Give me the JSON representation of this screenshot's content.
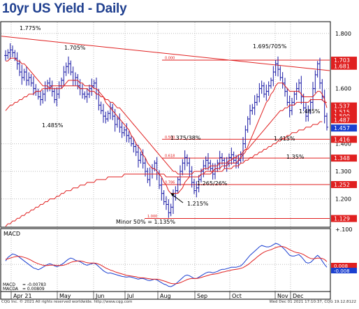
{
  "title": "10yr US Yield - Daily",
  "footer_left": "CQG Inc. © 2021 All rights reserved worldwide. http://www.cqg.com",
  "footer_right": "Wed Dec 01 2021 17:10:37, CQG 19.12.8122",
  "chart_data": [
    {
      "type": "candlestick",
      "title": "10yr US Yield - Daily",
      "x_labels": [
        "Apr 21",
        "May",
        "Jun",
        "Jul",
        "Aug",
        "Sep",
        "Oct",
        "Nov",
        "Dec"
      ],
      "y_ticks": [
        "1.800",
        "1.600",
        "1.400",
        "1.300",
        "1.200"
      ],
      "ylim": [
        1.1,
        1.84
      ],
      "grid": true,
      "price_tags": [
        {
          "label": "1.703",
          "value": 1.703,
          "color": "#e02020"
        },
        {
          "label": "1.681",
          "value": 1.681,
          "color": "#e02020"
        },
        {
          "label": "1.537",
          "value": 1.537,
          "color": "#e02020"
        },
        {
          "label": "1.515",
          "value": 1.515,
          "color": "#e02020"
        },
        {
          "label": "1.500",
          "value": 1.5,
          "color": "#e02020"
        },
        {
          "label": "1.487",
          "value": 1.487,
          "color": "#e02020"
        },
        {
          "label": "1.457",
          "value": 1.457,
          "color": "#1a3fd0"
        },
        {
          "label": "1.416",
          "value": 1.416,
          "color": "#e02020"
        },
        {
          "label": "1.348",
          "value": 1.348,
          "color": "#e02020"
        },
        {
          "label": "1.252",
          "value": 1.252,
          "color": "#e02020"
        },
        {
          "label": "1.129",
          "value": 1.129,
          "color": "#e02020"
        }
      ],
      "horizontal_levels": [
        {
          "value": 1.703,
          "label": "0.000"
        },
        {
          "value": 1.416,
          "label": "0.500"
        },
        {
          "value": 1.348,
          "label": "0.618"
        },
        {
          "value": 1.252,
          "label": "0.786"
        },
        {
          "value": 1.129,
          "label": "1.000"
        }
      ],
      "annotations": [
        "1.775%",
        "1.705%",
        "1.485%",
        "1.695/705%",
        "1.485%",
        "1.375/38%",
        "1.415%",
        "1.35%",
        "1.265/26%",
        "1.215%",
        "Minor 50% = 1.135%"
      ],
      "closes": [
        1.72,
        1.73,
        1.74,
        1.73,
        1.71,
        1.69,
        1.66,
        1.64,
        1.66,
        1.63,
        1.64,
        1.62,
        1.6,
        1.59,
        1.57,
        1.56,
        1.58,
        1.6,
        1.62,
        1.61,
        1.59,
        1.56,
        1.58,
        1.61,
        1.63,
        1.66,
        1.68,
        1.69,
        1.66,
        1.63,
        1.64,
        1.61,
        1.6,
        1.58,
        1.57,
        1.58,
        1.6,
        1.61,
        1.62,
        1.58,
        1.54,
        1.52,
        1.5,
        1.49,
        1.51,
        1.53,
        1.5,
        1.47,
        1.49,
        1.46,
        1.44,
        1.45,
        1.43,
        1.42,
        1.4,
        1.39,
        1.37,
        1.34,
        1.36,
        1.33,
        1.3,
        1.27,
        1.29,
        1.31,
        1.33,
        1.29,
        1.25,
        1.22,
        1.19,
        1.18,
        1.15,
        1.17,
        1.21,
        1.23,
        1.27,
        1.3,
        1.33,
        1.35,
        1.33,
        1.3,
        1.26,
        1.23,
        1.24,
        1.27,
        1.3,
        1.32,
        1.34,
        1.33,
        1.31,
        1.29,
        1.31,
        1.33,
        1.35,
        1.34,
        1.32,
        1.33,
        1.35,
        1.36,
        1.34,
        1.33,
        1.34,
        1.36,
        1.4,
        1.45,
        1.49,
        1.52,
        1.53,
        1.55,
        1.57,
        1.6,
        1.61,
        1.58,
        1.59,
        1.61,
        1.63,
        1.66,
        1.69,
        1.67,
        1.64,
        1.62,
        1.59,
        1.55,
        1.52,
        1.55,
        1.58,
        1.6,
        1.62,
        1.57,
        1.53,
        1.5,
        1.52,
        1.55,
        1.6,
        1.65,
        1.69,
        1.62,
        1.57,
        1.5,
        1.46
      ],
      "sma_short": [
        1.7,
        1.7,
        1.71,
        1.71,
        1.71,
        1.7,
        1.7,
        1.69,
        1.69,
        1.68,
        1.67,
        1.66,
        1.65,
        1.64,
        1.63,
        1.62,
        1.61,
        1.61,
        1.61,
        1.6,
        1.6,
        1.6,
        1.6,
        1.6,
        1.6,
        1.61,
        1.62,
        1.63,
        1.63,
        1.63,
        1.63,
        1.63,
        1.62,
        1.62,
        1.61,
        1.61,
        1.61,
        1.61,
        1.6,
        1.6,
        1.59,
        1.58,
        1.57,
        1.55,
        1.54,
        1.53,
        1.52,
        1.51,
        1.5,
        1.49,
        1.48,
        1.47,
        1.46,
        1.45,
        1.43,
        1.42,
        1.4,
        1.39,
        1.38,
        1.36,
        1.35,
        1.33,
        1.32,
        1.31,
        1.31,
        1.3,
        1.29,
        1.28,
        1.26,
        1.25,
        1.23,
        1.22,
        1.22,
        1.22,
        1.22,
        1.23,
        1.24,
        1.26,
        1.27,
        1.28,
        1.28,
        1.28,
        1.28,
        1.28,
        1.29,
        1.29,
        1.3,
        1.3,
        1.3,
        1.3,
        1.31,
        1.31,
        1.31,
        1.32,
        1.32,
        1.32,
        1.33,
        1.33,
        1.33,
        1.33,
        1.34,
        1.35,
        1.36,
        1.37,
        1.39,
        1.41,
        1.43,
        1.45,
        1.47,
        1.49,
        1.51,
        1.53,
        1.55,
        1.56,
        1.58,
        1.59,
        1.61,
        1.62,
        1.62,
        1.62,
        1.61,
        1.6,
        1.59,
        1.59,
        1.59,
        1.59,
        1.59,
        1.58,
        1.57,
        1.57,
        1.57,
        1.57,
        1.57,
        1.58,
        1.59,
        1.59,
        1.58,
        1.56,
        1.53
      ],
      "sma_long": [
        1.52,
        1.53,
        1.54,
        1.54,
        1.55,
        1.55,
        1.56,
        1.56,
        1.57,
        1.57,
        1.58,
        1.58,
        1.58,
        1.59,
        1.59,
        1.59,
        1.6,
        1.6,
        1.6,
        1.6,
        1.61,
        1.61,
        1.61,
        1.61,
        1.61,
        1.61,
        1.61,
        1.61,
        1.61,
        1.61,
        1.61,
        1.61,
        1.6,
        1.6,
        1.6,
        1.6,
        1.59,
        1.59,
        1.59,
        1.58,
        1.58,
        1.57,
        1.57,
        1.56,
        1.56,
        1.55,
        1.55,
        1.54,
        1.53,
        1.53,
        1.52,
        1.51,
        1.5,
        1.49,
        1.48,
        1.47,
        1.46,
        1.45,
        1.44,
        1.43,
        1.42,
        1.41,
        1.4,
        1.39,
        1.38,
        1.37,
        1.36,
        1.35,
        1.34,
        1.33,
        1.32,
        1.31,
        1.3,
        1.3,
        1.29,
        1.29,
        1.29,
        1.29,
        1.29,
        1.29,
        1.29,
        1.3,
        1.3,
        1.3,
        1.3,
        1.31,
        1.31,
        1.31,
        1.32,
        1.32,
        1.32,
        1.32,
        1.33,
        1.33,
        1.33,
        1.33,
        1.34,
        1.34,
        1.35,
        1.35,
        1.36,
        1.36,
        1.37,
        1.38,
        1.38,
        1.39,
        1.4,
        1.41,
        1.42,
        1.43,
        1.44,
        1.45,
        1.46,
        1.47,
        1.48,
        1.49,
        1.5,
        1.51,
        1.52,
        1.52,
        1.53,
        1.53,
        1.54,
        1.54,
        1.54,
        1.55,
        1.55,
        1.55,
        1.55,
        1.55,
        1.55,
        1.56,
        1.56,
        1.56,
        1.56,
        1.56,
        1.56,
        1.55,
        1.55
      ],
      "sma_xlong": [
        1.1,
        1.11,
        1.11,
        1.12,
        1.12,
        1.13,
        1.13,
        1.14,
        1.14,
        1.15,
        1.15,
        1.16,
        1.16,
        1.17,
        1.17,
        1.18,
        1.18,
        1.19,
        1.19,
        1.2,
        1.2,
        1.2,
        1.21,
        1.21,
        1.22,
        1.22,
        1.23,
        1.23,
        1.23,
        1.24,
        1.24,
        1.24,
        1.25,
        1.25,
        1.25,
        1.26,
        1.26,
        1.26,
        1.26,
        1.27,
        1.27,
        1.27,
        1.27,
        1.27,
        1.28,
        1.28,
        1.28,
        1.28,
        1.28,
        1.28,
        1.28,
        1.29,
        1.29,
        1.29,
        1.29,
        1.29,
        1.29,
        1.29,
        1.29,
        1.29,
        1.29,
        1.29,
        1.29,
        1.29,
        1.29,
        1.29,
        1.29,
        1.29,
        1.29,
        1.28,
        1.28,
        1.28,
        1.28,
        1.28,
        1.28,
        1.28,
        1.28,
        1.28,
        1.28,
        1.28,
        1.28,
        1.28,
        1.28,
        1.28,
        1.29,
        1.29,
        1.29,
        1.29,
        1.29,
        1.3,
        1.3,
        1.3,
        1.3,
        1.3,
        1.31,
        1.31,
        1.31,
        1.31,
        1.32,
        1.32,
        1.32,
        1.33,
        1.33,
        1.34,
        1.34,
        1.35,
        1.35,
        1.36,
        1.36,
        1.37,
        1.37,
        1.38,
        1.38,
        1.39,
        1.39,
        1.4,
        1.4,
        1.41,
        1.41,
        1.42,
        1.42,
        1.43,
        1.43,
        1.44,
        1.44,
        1.44,
        1.45,
        1.45,
        1.45,
        1.46,
        1.46,
        1.46,
        1.47,
        1.47,
        1.47,
        1.48,
        1.48
      ],
      "trendline": {
        "from": {
          "x_index": 0,
          "value": 1.79
        },
        "to": {
          "x_index": 141,
          "value": 1.665
        }
      }
    },
    {
      "type": "line",
      "title": "MACD",
      "y_ticks": [
        "+.100"
      ],
      "ylim": [
        -0.075,
        0.1
      ],
      "legend": [
        {
          "label": "MACD",
          "value": "-0.00783",
          "color": "#1a3fd0"
        },
        {
          "label": "MACDA",
          "value": "0.00809",
          "color": "#e02020"
        }
      ],
      "price_tags": [
        {
          "label": "0.008",
          "value": 0.008,
          "color": "#e02020"
        },
        {
          "label": "-0.008",
          "value": -0.008,
          "color": "#1a3fd0"
        }
      ],
      "series": [
        {
          "name": "MACD",
          "values": [
            0.01,
            0.02,
            0.025,
            0.03,
            0.028,
            0.025,
            0.02,
            0.015,
            0.01,
            0.005,
            0.0,
            -0.005,
            -0.01,
            -0.012,
            -0.015,
            -0.012,
            -0.008,
            -0.004,
            0.0,
            0.002,
            0.0,
            -0.004,
            -0.006,
            -0.004,
            0.0,
            0.004,
            0.01,
            0.015,
            0.018,
            0.016,
            0.012,
            0.01,
            0.008,
            0.004,
            0.0,
            -0.002,
            0.0,
            0.002,
            0.004,
            0.0,
            -0.006,
            -0.012,
            -0.018,
            -0.022,
            -0.025,
            -0.024,
            -0.026,
            -0.028,
            -0.03,
            -0.032,
            -0.034,
            -0.035,
            -0.036,
            -0.035,
            -0.036,
            -0.038,
            -0.04,
            -0.042,
            -0.04,
            -0.04,
            -0.042,
            -0.045,
            -0.046,
            -0.044,
            -0.042,
            -0.044,
            -0.048,
            -0.052,
            -0.056,
            -0.058,
            -0.062,
            -0.063,
            -0.06,
            -0.056,
            -0.05,
            -0.044,
            -0.038,
            -0.032,
            -0.03,
            -0.032,
            -0.036,
            -0.04,
            -0.04,
            -0.036,
            -0.032,
            -0.028,
            -0.024,
            -0.022,
            -0.022,
            -0.024,
            -0.022,
            -0.02,
            -0.016,
            -0.014,
            -0.014,
            -0.012,
            -0.01,
            -0.008,
            -0.008,
            -0.008,
            -0.006,
            -0.004,
            0.002,
            0.01,
            0.018,
            0.026,
            0.032,
            0.038,
            0.044,
            0.05,
            0.054,
            0.052,
            0.05,
            0.05,
            0.052,
            0.056,
            0.06,
            0.058,
            0.054,
            0.048,
            0.042,
            0.034,
            0.026,
            0.024,
            0.024,
            0.026,
            0.028,
            0.022,
            0.014,
            0.006,
            0.004,
            0.006,
            0.012,
            0.02,
            0.026,
            0.02,
            0.01,
            0.0,
            -0.008
          ]
        },
        {
          "name": "MACDA",
          "values": [
            0.015,
            0.016,
            0.018,
            0.02,
            0.022,
            0.023,
            0.023,
            0.022,
            0.02,
            0.018,
            0.015,
            0.012,
            0.008,
            0.005,
            0.002,
            0.0,
            -0.002,
            -0.003,
            -0.003,
            -0.002,
            -0.002,
            -0.002,
            -0.003,
            -0.003,
            -0.003,
            -0.002,
            0.0,
            0.003,
            0.006,
            0.008,
            0.009,
            0.01,
            0.01,
            0.009,
            0.007,
            0.005,
            0.004,
            0.004,
            0.004,
            0.003,
            0.001,
            -0.002,
            -0.006,
            -0.01,
            -0.013,
            -0.016,
            -0.018,
            -0.021,
            -0.023,
            -0.025,
            -0.027,
            -0.029,
            -0.031,
            -0.032,
            -0.033,
            -0.034,
            -0.035,
            -0.037,
            -0.038,
            -0.038,
            -0.039,
            -0.04,
            -0.041,
            -0.042,
            -0.042,
            -0.042,
            -0.043,
            -0.045,
            -0.047,
            -0.049,
            -0.052,
            -0.054,
            -0.055,
            -0.055,
            -0.054,
            -0.052,
            -0.049,
            -0.046,
            -0.043,
            -0.041,
            -0.04,
            -0.04,
            -0.04,
            -0.039,
            -0.037,
            -0.035,
            -0.033,
            -0.031,
            -0.029,
            -0.028,
            -0.027,
            -0.026,
            -0.024,
            -0.022,
            -0.021,
            -0.019,
            -0.018,
            -0.016,
            -0.015,
            -0.014,
            -0.013,
            -0.011,
            -0.009,
            -0.005,
            -0.001,
            0.004,
            0.01,
            0.015,
            0.021,
            0.026,
            0.031,
            0.035,
            0.038,
            0.04,
            0.042,
            0.045,
            0.048,
            0.05,
            0.051,
            0.051,
            0.049,
            0.046,
            0.042,
            0.039,
            0.036,
            0.034,
            0.033,
            0.031,
            0.028,
            0.024,
            0.02,
            0.017,
            0.016,
            0.017,
            0.018,
            0.018,
            0.017,
            0.014,
            0.008
          ]
        }
      ]
    }
  ]
}
